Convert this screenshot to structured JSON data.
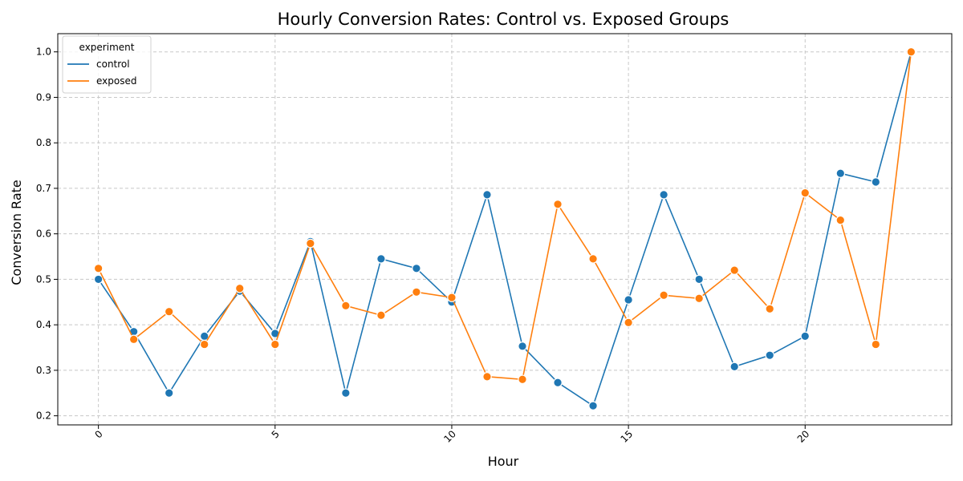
{
  "chart_data": {
    "type": "line",
    "title": "Hourly Conversion Rates: Control vs. Exposed Groups",
    "xlabel": "Hour",
    "ylabel": "Conversion Rate",
    "x": [
      0,
      1,
      2,
      3,
      4,
      5,
      6,
      7,
      8,
      9,
      10,
      11,
      12,
      13,
      14,
      15,
      16,
      17,
      18,
      19,
      20,
      21,
      22,
      23
    ],
    "xlim": [
      -1.15,
      24.15
    ],
    "ylim": [
      0.18,
      1.04
    ],
    "x_ticks": [
      0,
      5,
      10,
      15,
      20
    ],
    "x_tick_labels": [
      "0",
      "5",
      "10",
      "15",
      "20"
    ],
    "y_ticks": [
      0.2,
      0.3,
      0.4,
      0.5,
      0.6,
      0.7,
      0.8,
      0.9,
      1.0
    ],
    "y_tick_labels": [
      "0.2",
      "0.3",
      "0.4",
      "0.5",
      "0.6",
      "0.7",
      "0.8",
      "0.9",
      "1.0"
    ],
    "grid": true,
    "legend": {
      "title": "experiment",
      "placement": "top-left"
    },
    "series": [
      {
        "name": "control",
        "color": "#1f77b4",
        "values": [
          0.5,
          0.385,
          0.25,
          0.375,
          0.474,
          0.381,
          0.583,
          0.25,
          0.545,
          0.524,
          0.45,
          0.686,
          0.353,
          0.273,
          0.222,
          0.455,
          0.686,
          0.5,
          0.308,
          0.333,
          0.375,
          0.733,
          0.714,
          1.0
        ]
      },
      {
        "name": "exposed",
        "color": "#ff7f0e",
        "values": [
          0.524,
          0.368,
          0.429,
          0.357,
          0.48,
          0.357,
          0.579,
          0.442,
          0.421,
          0.472,
          0.46,
          0.286,
          0.28,
          0.665,
          0.545,
          0.405,
          0.465,
          0.458,
          0.52,
          0.435,
          0.69,
          0.63,
          0.357,
          1.0
        ]
      }
    ]
  }
}
